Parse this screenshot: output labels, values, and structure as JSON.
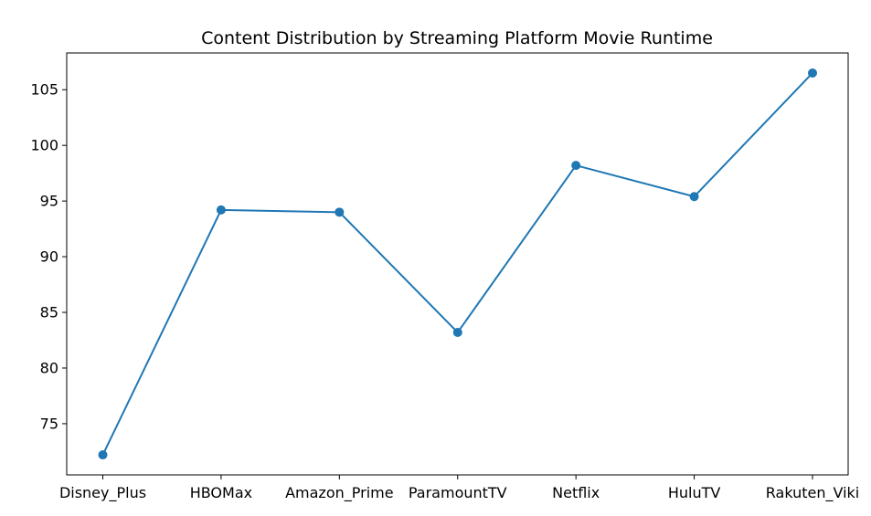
{
  "chart_data": {
    "type": "line",
    "title": "Content Distribution by Streaming Platform Movie Runtime",
    "xlabel": "",
    "ylabel": "",
    "categories": [
      "Disney_Plus",
      "HBOMax",
      "Amazon_Prime",
      "ParamountTV",
      "Netflix",
      "HuluTV",
      "Rakuten_Viki"
    ],
    "series": [
      {
        "values": [
          72.2,
          94.2,
          94.0,
          83.2,
          98.2,
          95.4,
          106.5
        ],
        "color": "#1f77b4",
        "marker": "circle"
      }
    ],
    "ylim": [
      70.4,
      108.3
    ],
    "yticks": [
      75,
      80,
      85,
      90,
      95,
      100,
      105
    ],
    "grid": false,
    "legend": "none"
  }
}
